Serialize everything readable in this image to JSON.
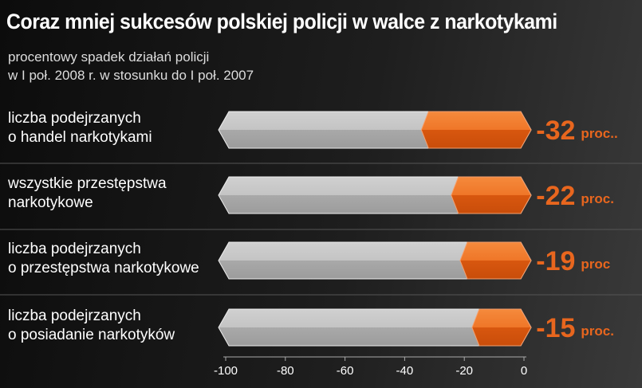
{
  "chart_data": {
    "type": "bar",
    "orientation": "horizontal",
    "title": "Coraz mniej sukcesów polskiej policji w walce z narkotykami",
    "subtitle": [
      "procentowy spadek działań policji",
      "w I poł. 2008 r. w stosunku do I poł. 2007"
    ],
    "categories": [
      "liczba podejrzanych\no handel narkotykami",
      "wszystkie przestępstwa\nnarkotykowe",
      "liczba podejrzanych\no przestępstwa narkotykowe",
      "liczba podejrzanych\no posiadanie narkotyków"
    ],
    "values": [
      -32,
      -22,
      -19,
      -15
    ],
    "units": [
      "proc..",
      "proc.",
      "proc",
      "proc."
    ],
    "color": "#e8661e",
    "xlim": [
      -100,
      0
    ],
    "xticks": [
      -100,
      -80,
      -60,
      -40,
      -20,
      0
    ]
  }
}
